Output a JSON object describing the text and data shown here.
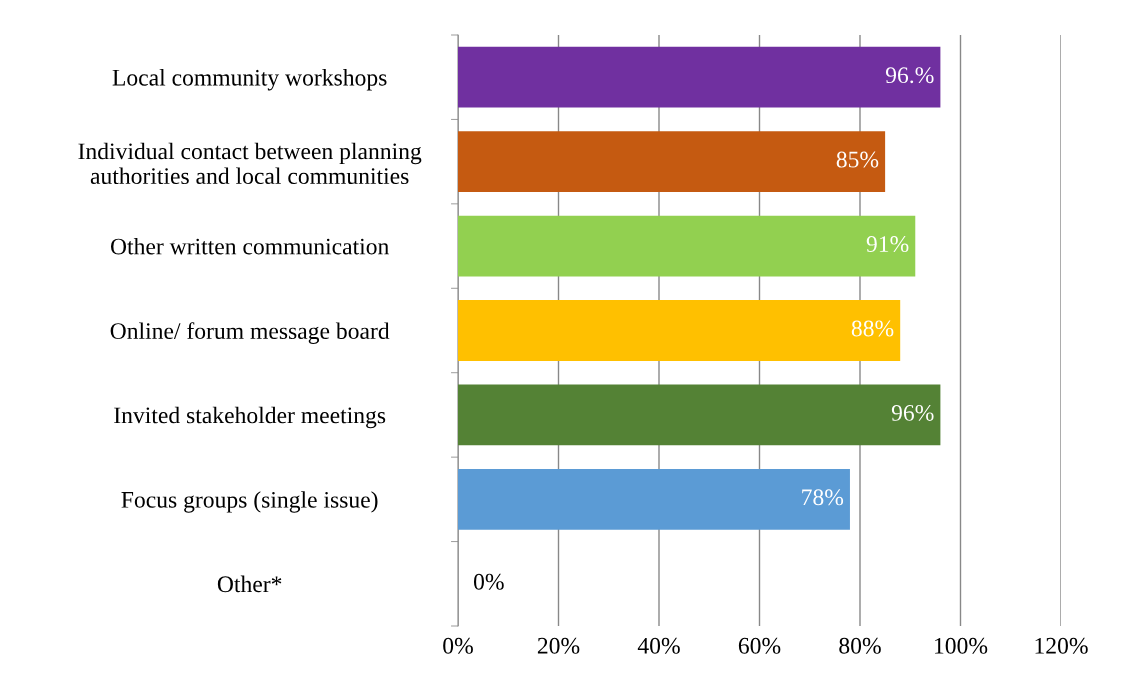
{
  "chart_data": {
    "type": "bar",
    "orientation": "horizontal",
    "categories": [
      "Local community workshops",
      "Individual contact between planning\nauthorities and local communities",
      "Other written communication",
      "Online/ forum message board",
      "Invited stakeholder meetings",
      "Focus groups (single issue)",
      "Other*"
    ],
    "values": [
      96,
      85,
      91,
      88,
      96,
      78,
      0
    ],
    "colors": [
      "#7030a0",
      "#c55a11",
      "#92d050",
      "#ffc000",
      "#548235",
      "#5b9bd5",
      "#5b9bd5"
    ],
    "value_labels": [
      "96.%",
      "85%",
      "91%",
      "88%",
      "96%",
      "78%",
      "0%"
    ],
    "xlim": [
      0,
      120
    ],
    "xticks": [
      {
        "value": 0,
        "label": "0%"
      },
      {
        "value": 20,
        "label": "20%"
      },
      {
        "value": 40,
        "label": "40%"
      },
      {
        "value": 60,
        "label": "60%"
      },
      {
        "value": 80,
        "label": "80%"
      },
      {
        "value": 100,
        "label": "100%"
      },
      {
        "value": 120,
        "label": "120%"
      }
    ],
    "grid": "x",
    "legend": false
  }
}
